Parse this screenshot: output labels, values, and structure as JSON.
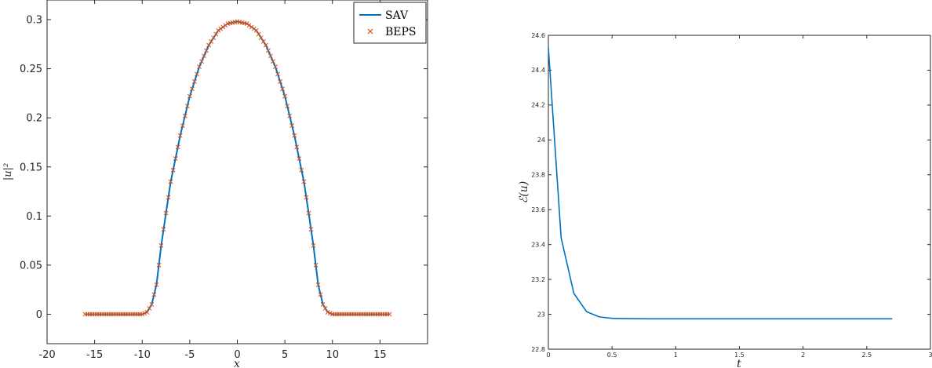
{
  "chart_data": [
    {
      "type": "line",
      "xlabel": "x",
      "ylabel": "|u|²",
      "xlim": [
        -20,
        20
      ],
      "ylim": [
        -0.03,
        0.32
      ],
      "xticks": [
        -20,
        -15,
        -10,
        -5,
        0,
        5,
        10,
        15
      ],
      "xtick_labels": [
        "-20",
        "-15",
        "-10",
        "-5",
        "0",
        "5",
        "10",
        "15"
      ],
      "yticks": [
        0,
        0.05,
        0.1,
        0.15,
        0.2,
        0.25,
        0.3
      ],
      "ytick_labels": [
        "0",
        "0.05",
        "0.1",
        "0.15",
        "0.2",
        "0.25",
        "0.3"
      ],
      "grid": false,
      "legend_position": "top-right",
      "series": [
        {
          "name": "SAV",
          "style": "line",
          "color": "#0072BD",
          "x": [
            -16,
            -12,
            -10,
            -9.5,
            -9,
            -8.5,
            -8,
            -7.5,
            -7,
            -6,
            -5,
            -4,
            -3,
            -2,
            -1,
            0,
            1,
            2,
            3,
            4,
            5,
            6,
            7,
            7.5,
            8,
            8.5,
            9,
            9.5,
            10,
            12,
            16
          ],
          "y": [
            0,
            0,
            0,
            0.002,
            0.01,
            0.03,
            0.07,
            0.103,
            0.135,
            0.182,
            0.222,
            0.252,
            0.274,
            0.289,
            0.296,
            0.298,
            0.296,
            0.289,
            0.274,
            0.252,
            0.222,
            0.182,
            0.135,
            0.103,
            0.07,
            0.03,
            0.01,
            0.002,
            0,
            0,
            0
          ]
        },
        {
          "name": "BEPS",
          "style": "markers-x",
          "color": "#D95319",
          "x_range": [
            -16,
            16
          ],
          "step": 0.25
        }
      ]
    },
    {
      "type": "line",
      "xlabel": "t",
      "ylabel": "ℰ(u)",
      "xlim": [
        0,
        3
      ],
      "ylim": [
        22.8,
        24.6
      ],
      "xticks": [
        0,
        0.5,
        1,
        1.5,
        2,
        2.5,
        3
      ],
      "xtick_labels": [
        "0",
        "0.5",
        "1",
        "1.5",
        "2",
        "2.5",
        "3"
      ],
      "yticks": [
        22.8,
        23,
        23.2,
        23.4,
        23.6,
        23.8,
        24,
        24.2,
        24.4,
        24.6
      ],
      "ytick_labels": [
        "22.8",
        "23",
        "23.2",
        "23.4",
        "23.6",
        "23.8",
        "24",
        "24.2",
        "24.4",
        "24.6"
      ],
      "grid": false,
      "series": [
        {
          "style": "line",
          "color": "#0072BD",
          "x": [
            0,
            0.1,
            0.2,
            0.3,
            0.4,
            0.5,
            0.6,
            0.8,
            1,
            1.5,
            2,
            2.5,
            2.7
          ],
          "y": [
            24.53,
            23.44,
            23.12,
            23.015,
            22.985,
            22.977,
            22.975,
            22.974,
            22.974,
            22.974,
            22.974,
            22.974,
            22.974
          ]
        }
      ]
    }
  ]
}
